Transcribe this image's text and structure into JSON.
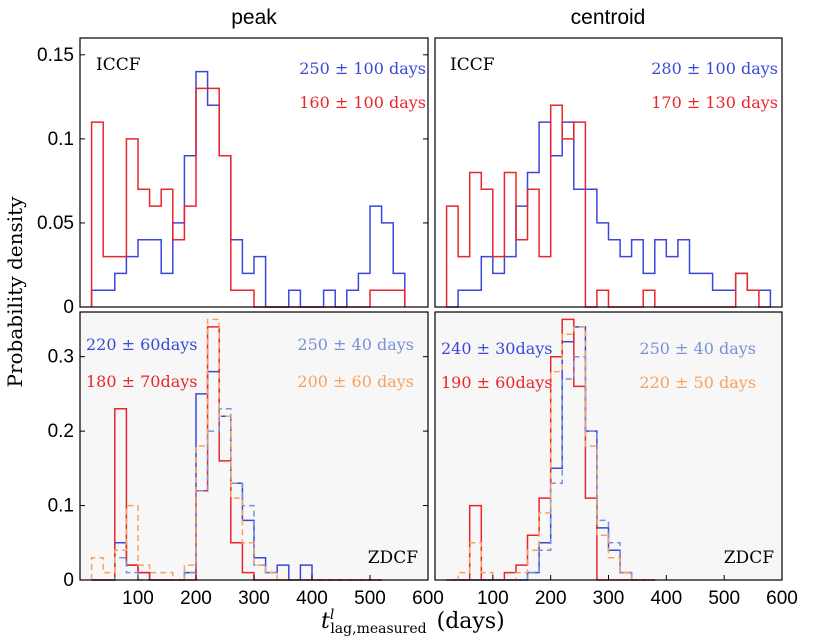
{
  "figure": {
    "column_titles": [
      "peak",
      "centroid"
    ],
    "ylabel": "Probability density",
    "xlabel_main": "t",
    "xlabel_sup": "l",
    "xlabel_sub": "lag,measured",
    "xlabel_units": "(days)",
    "colors": {
      "blue": "#3a48d9",
      "red": "#e8262c",
      "lightblue": "#7a90d8",
      "orange": "#f7a35f",
      "panel_bg": "#f7f7f7"
    }
  },
  "chart_data": [
    {
      "type": "bar",
      "panel": "top-left",
      "title": "peak",
      "method": "ICCF",
      "xlim": [
        0,
        600
      ],
      "ylim": [
        0,
        0.16
      ],
      "xticks": [],
      "yticks": [
        0,
        0.05,
        0.1,
        0.15
      ],
      "ytick_labels": [
        "0",
        "0.05",
        "0.1",
        "0.15"
      ],
      "grid": false,
      "binwidth": 20,
      "series": [
        {
          "name": "blue",
          "color": "#3a48d9",
          "style": "solid",
          "label": "250 ± 100 days",
          "x": [
            30,
            50,
            70,
            90,
            110,
            130,
            150,
            170,
            190,
            210,
            230,
            250,
            270,
            290,
            310,
            330,
            350,
            370,
            390,
            410,
            430,
            450,
            470,
            490,
            510,
            530,
            550
          ],
          "values": [
            0.01,
            0.01,
            0.02,
            0.03,
            0.04,
            0.04,
            0.02,
            0.05,
            0.09,
            0.14,
            0.12,
            0.09,
            0.04,
            0.02,
            0.03,
            0,
            0,
            0.01,
            0,
            0,
            0.01,
            0,
            0.01,
            0.02,
            0.06,
            0.05,
            0.02
          ]
        },
        {
          "name": "red",
          "color": "#e8262c",
          "style": "solid",
          "label": "160 ± 100 days",
          "x": [
            30,
            50,
            70,
            90,
            110,
            130,
            150,
            170,
            190,
            210,
            230,
            250,
            270,
            290,
            310,
            330,
            350,
            370,
            390,
            410,
            430,
            450,
            470,
            490,
            510,
            530,
            550
          ],
          "values": [
            0.11,
            0.03,
            0.03,
            0.1,
            0.07,
            0.06,
            0.07,
            0.04,
            0.06,
            0.13,
            0.13,
            0.09,
            0.01,
            0.01,
            0,
            0,
            0,
            0,
            0,
            0,
            0,
            0,
            0,
            0,
            0.01,
            0.01,
            0.01
          ]
        }
      ]
    },
    {
      "type": "bar",
      "panel": "top-right",
      "title": "centroid",
      "method": "ICCF",
      "xlim": [
        0,
        600
      ],
      "ylim": [
        0,
        0.16
      ],
      "xticks": [],
      "yticks": [],
      "grid": false,
      "binwidth": 20,
      "series": [
        {
          "name": "blue",
          "color": "#3a48d9",
          "style": "solid",
          "label": "280 ± 100 days",
          "x": [
            30,
            50,
            70,
            90,
            110,
            130,
            150,
            170,
            190,
            210,
            230,
            250,
            270,
            290,
            310,
            330,
            350,
            370,
            390,
            410,
            430,
            450,
            470,
            490,
            510,
            530,
            550,
            570
          ],
          "values": [
            0,
            0.01,
            0.01,
            0.03,
            0.02,
            0.03,
            0.06,
            0.08,
            0.11,
            0.09,
            0.11,
            0.07,
            0.07,
            0.05,
            0.04,
            0.03,
            0.04,
            0.02,
            0.04,
            0.03,
            0.04,
            0.02,
            0.02,
            0.01,
            0.01,
            0.02,
            0.01,
            0.01
          ]
        },
        {
          "name": "red",
          "color": "#e8262c",
          "style": "solid",
          "label": "170 ± 130 days",
          "x": [
            30,
            50,
            70,
            90,
            110,
            130,
            150,
            170,
            190,
            210,
            230,
            250,
            270,
            290,
            310,
            330,
            350,
            370,
            390,
            410,
            430,
            450,
            470,
            490,
            510,
            530,
            550,
            570
          ],
          "values": [
            0.06,
            0.03,
            0.08,
            0.07,
            0.03,
            0.08,
            0.04,
            0.07,
            0.03,
            0.12,
            0.1,
            0.11,
            0,
            0.01,
            0,
            0,
            0,
            0.01,
            0,
            0,
            0,
            0,
            0,
            0,
            0,
            0.02,
            0.01,
            0
          ]
        }
      ]
    },
    {
      "type": "bar",
      "panel": "bottom-left",
      "method": "ZDCF",
      "xlim": [
        0,
        600
      ],
      "ylim": [
        0,
        0.36
      ],
      "xticks": [
        100,
        200,
        300,
        400,
        500,
        600
      ],
      "xtick_labels": [
        "100",
        "200",
        "300",
        "400",
        "500",
        "600"
      ],
      "yticks": [
        0,
        0.1,
        0.2,
        0.3
      ],
      "ytick_labels": [
        "0",
        "0.1",
        "0.2",
        "0.3"
      ],
      "grid": false,
      "binwidth": 20,
      "series": [
        {
          "name": "blue",
          "color": "#3a48d9",
          "style": "solid",
          "label": "220 ± 60days",
          "x": [
            30,
            50,
            70,
            90,
            110,
            130,
            150,
            170,
            190,
            210,
            230,
            250,
            270,
            290,
            310,
            330,
            350,
            370,
            390,
            410,
            430,
            450,
            470,
            490,
            510
          ],
          "values": [
            0,
            0,
            0.05,
            0.02,
            0.01,
            0,
            0,
            0,
            0.01,
            0.25,
            0.28,
            0.22,
            0.13,
            0.08,
            0.03,
            0.01,
            0.02,
            0,
            0.02,
            0,
            0,
            0,
            0,
            0,
            0
          ]
        },
        {
          "name": "red",
          "color": "#e8262c",
          "style": "solid",
          "label": "180 ± 70days",
          "x": [
            30,
            50,
            70,
            90,
            110,
            130,
            150,
            170,
            190,
            210,
            230,
            250,
            270,
            290,
            310,
            330,
            350,
            370,
            390,
            410,
            430,
            450,
            470,
            490,
            510
          ],
          "values": [
            0,
            0,
            0.23,
            0.02,
            0.01,
            0,
            0,
            0,
            0,
            0.12,
            0.34,
            0.16,
            0.05,
            0.01,
            0,
            0,
            0,
            0,
            0,
            0,
            0,
            0,
            0,
            0,
            0
          ]
        },
        {
          "name": "lightblue",
          "color": "#7a90d8",
          "style": "dashed",
          "label": "250 ± 40 days",
          "x": [
            30,
            50,
            70,
            90,
            110,
            130,
            150,
            170,
            190,
            210,
            230,
            250,
            270,
            290,
            310,
            330,
            350,
            370,
            390,
            410,
            430,
            450,
            470,
            490,
            510
          ],
          "values": [
            0,
            0,
            0.03,
            0.01,
            0,
            0,
            0,
            0,
            0.01,
            0.12,
            0.2,
            0.23,
            0.13,
            0.1,
            0.02,
            0.01,
            0,
            0,
            0,
            0,
            0,
            0,
            0,
            0,
            0
          ]
        },
        {
          "name": "orange",
          "color": "#f7a35f",
          "style": "dashed",
          "label": "200 ± 60 days",
          "x": [
            30,
            50,
            70,
            90,
            110,
            130,
            150,
            170,
            190,
            210,
            230,
            250,
            270,
            290,
            310,
            330,
            350,
            370,
            390,
            410,
            430,
            450,
            470,
            490,
            510
          ],
          "values": [
            0.03,
            0.01,
            0.04,
            0.1,
            0.02,
            0.01,
            0.01,
            0,
            0.02,
            0.18,
            0.35,
            0.22,
            0.11,
            0.05,
            0.02,
            0.01,
            0,
            0,
            0,
            0,
            0,
            0,
            0,
            0,
            0
          ]
        }
      ]
    },
    {
      "type": "bar",
      "panel": "bottom-right",
      "method": "ZDCF",
      "xlim": [
        0,
        600
      ],
      "ylim": [
        0,
        0.36
      ],
      "xticks": [
        100,
        200,
        300,
        400,
        500,
        600
      ],
      "xtick_labels": [
        "100",
        "200",
        "300",
        "400",
        "500",
        "600"
      ],
      "yticks": [],
      "grid": false,
      "binwidth": 20,
      "series": [
        {
          "name": "blue",
          "color": "#3a48d9",
          "style": "solid",
          "label": "240 ± 30days",
          "x": [
            30,
            50,
            70,
            90,
            110,
            130,
            150,
            170,
            190,
            210,
            230,
            250,
            270,
            290,
            310,
            330,
            350,
            370
          ],
          "values": [
            0,
            0,
            0,
            0,
            0,
            0,
            0,
            0.01,
            0.05,
            0.15,
            0.32,
            0.34,
            0.2,
            0.07,
            0.04,
            0.01,
            0,
            0
          ]
        },
        {
          "name": "red",
          "color": "#e8262c",
          "style": "solid",
          "label": "190 ± 60days",
          "x": [
            30,
            50,
            70,
            90,
            110,
            130,
            150,
            170,
            190,
            210,
            230,
            250,
            270,
            290,
            310,
            330,
            350,
            370
          ],
          "values": [
            0,
            0,
            0.1,
            0,
            0,
            0.01,
            0.02,
            0.06,
            0.11,
            0.3,
            0.35,
            0.26,
            0.11,
            0,
            0,
            0,
            0,
            0
          ]
        },
        {
          "name": "lightblue",
          "color": "#7a90d8",
          "style": "dashed",
          "label": "250 ± 40 days",
          "x": [
            30,
            50,
            70,
            90,
            110,
            130,
            150,
            170,
            190,
            210,
            230,
            250,
            270,
            290,
            310,
            330,
            350,
            370
          ],
          "values": [
            0,
            0,
            0,
            0,
            0,
            0,
            0,
            0.01,
            0.04,
            0.13,
            0.27,
            0.3,
            0.2,
            0.08,
            0.05,
            0.01,
            0,
            0
          ]
        },
        {
          "name": "orange",
          "color": "#f7a35f",
          "style": "dashed",
          "label": "220 ± 50 days",
          "x": [
            30,
            50,
            70,
            90,
            110,
            130,
            150,
            170,
            190,
            210,
            230,
            250,
            270,
            290,
            310,
            330,
            350,
            370
          ],
          "values": [
            0,
            0.01,
            0.05,
            0.01,
            0,
            0,
            0.01,
            0.04,
            0.09,
            0.28,
            0.33,
            0.34,
            0.18,
            0.06,
            0.03,
            0.01,
            0,
            0
          ]
        }
      ]
    }
  ]
}
